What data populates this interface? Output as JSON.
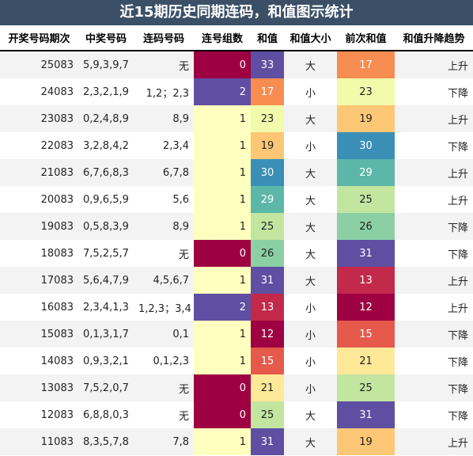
{
  "title": "近15期历史同期连码，和值图示统计",
  "headers": [
    "开奖号码期次",
    "中奖号码",
    "连码号码",
    "连号组数",
    "和值",
    "和值大小",
    "前次和值",
    "和值升降趋势"
  ],
  "rows": [
    {
      "issue": "25083",
      "numbers": "5,9,3,9,7",
      "consec": "无",
      "groups": "0",
      "sum": "33",
      "size": "大",
      "prev": "17",
      "trend": "上升"
    },
    {
      "issue": "24083",
      "numbers": "2,3,2,1,9",
      "consec": "1,2；2,3",
      "groups": "2",
      "sum": "17",
      "size": "小",
      "prev": "23",
      "trend": "下降"
    },
    {
      "issue": "23083",
      "numbers": "0,2,4,8,9",
      "consec": "8,9",
      "groups": "1",
      "sum": "23",
      "size": "大",
      "prev": "19",
      "trend": "上升"
    },
    {
      "issue": "22083",
      "numbers": "3,2,8,4,2",
      "consec": "2,3,4",
      "groups": "1",
      "sum": "19",
      "size": "小",
      "prev": "30",
      "trend": "下降"
    },
    {
      "issue": "21083",
      "numbers": "6,7,6,8,3",
      "consec": "6,7,8",
      "groups": "1",
      "sum": "30",
      "size": "大",
      "prev": "29",
      "trend": "上升"
    },
    {
      "issue": "20083",
      "numbers": "0,9,6,5,9",
      "consec": "5,6",
      "groups": "1",
      "sum": "29",
      "size": "大",
      "prev": "25",
      "trend": "上升"
    },
    {
      "issue": "19083",
      "numbers": "0,5,8,3,9",
      "consec": "8,9",
      "groups": "1",
      "sum": "25",
      "size": "大",
      "prev": "26",
      "trend": "下降"
    },
    {
      "issue": "18083",
      "numbers": "7,5,2,5,7",
      "consec": "无",
      "groups": "0",
      "sum": "26",
      "size": "大",
      "prev": "31",
      "trend": "下降"
    },
    {
      "issue": "17083",
      "numbers": "5,6,4,7,9",
      "consec": "4,5,6,7",
      "groups": "1",
      "sum": "31",
      "size": "大",
      "prev": "13",
      "trend": "上升"
    },
    {
      "issue": "16083",
      "numbers": "2,3,4,1,3",
      "consec": "1,2,3；3,4",
      "groups": "2",
      "sum": "13",
      "size": "小",
      "prev": "12",
      "trend": "上升"
    },
    {
      "issue": "15083",
      "numbers": "0,1,3,1,7",
      "consec": "0,1",
      "groups": "1",
      "sum": "12",
      "size": "小",
      "prev": "15",
      "trend": "下降"
    },
    {
      "issue": "14083",
      "numbers": "0,9,3,2,1",
      "consec": "0,1,2,3",
      "groups": "1",
      "sum": "15",
      "size": "小",
      "prev": "21",
      "trend": "下降"
    },
    {
      "issue": "13083",
      "numbers": "7,5,2,0,7",
      "consec": "无",
      "groups": "0",
      "sum": "21",
      "size": "小",
      "prev": "25",
      "trend": "下降"
    },
    {
      "issue": "12083",
      "numbers": "6,8,8,0,3",
      "consec": "无",
      "groups": "0",
      "sum": "25",
      "size": "大",
      "prev": "31",
      "trend": "下降"
    },
    {
      "issue": "11083",
      "numbers": "8,3,5,7,8",
      "consec": "7,8",
      "groups": "1",
      "sum": "31",
      "size": "大",
      "prev": "19",
      "trend": "上升"
    }
  ],
  "colors": {
    "header_bg": "#3b5067",
    "groups": {
      "0": "#9e0142",
      "1": "#ffffbf",
      "2": "#5e4fa2"
    },
    "values": {
      "12": "#9e0142",
      "13": "#c2294a",
      "15": "#e55a4b",
      "17": "#f88d52",
      "19": "#fdc775",
      "21": "#fee999",
      "23": "#f2faac",
      "25": "#c2e6a0",
      "26": "#8ad0a4",
      "29": "#5cb7a9",
      "30": "#3a8fb7",
      "31": "#5e4fa2",
      "33": "#5e4fa2"
    }
  }
}
